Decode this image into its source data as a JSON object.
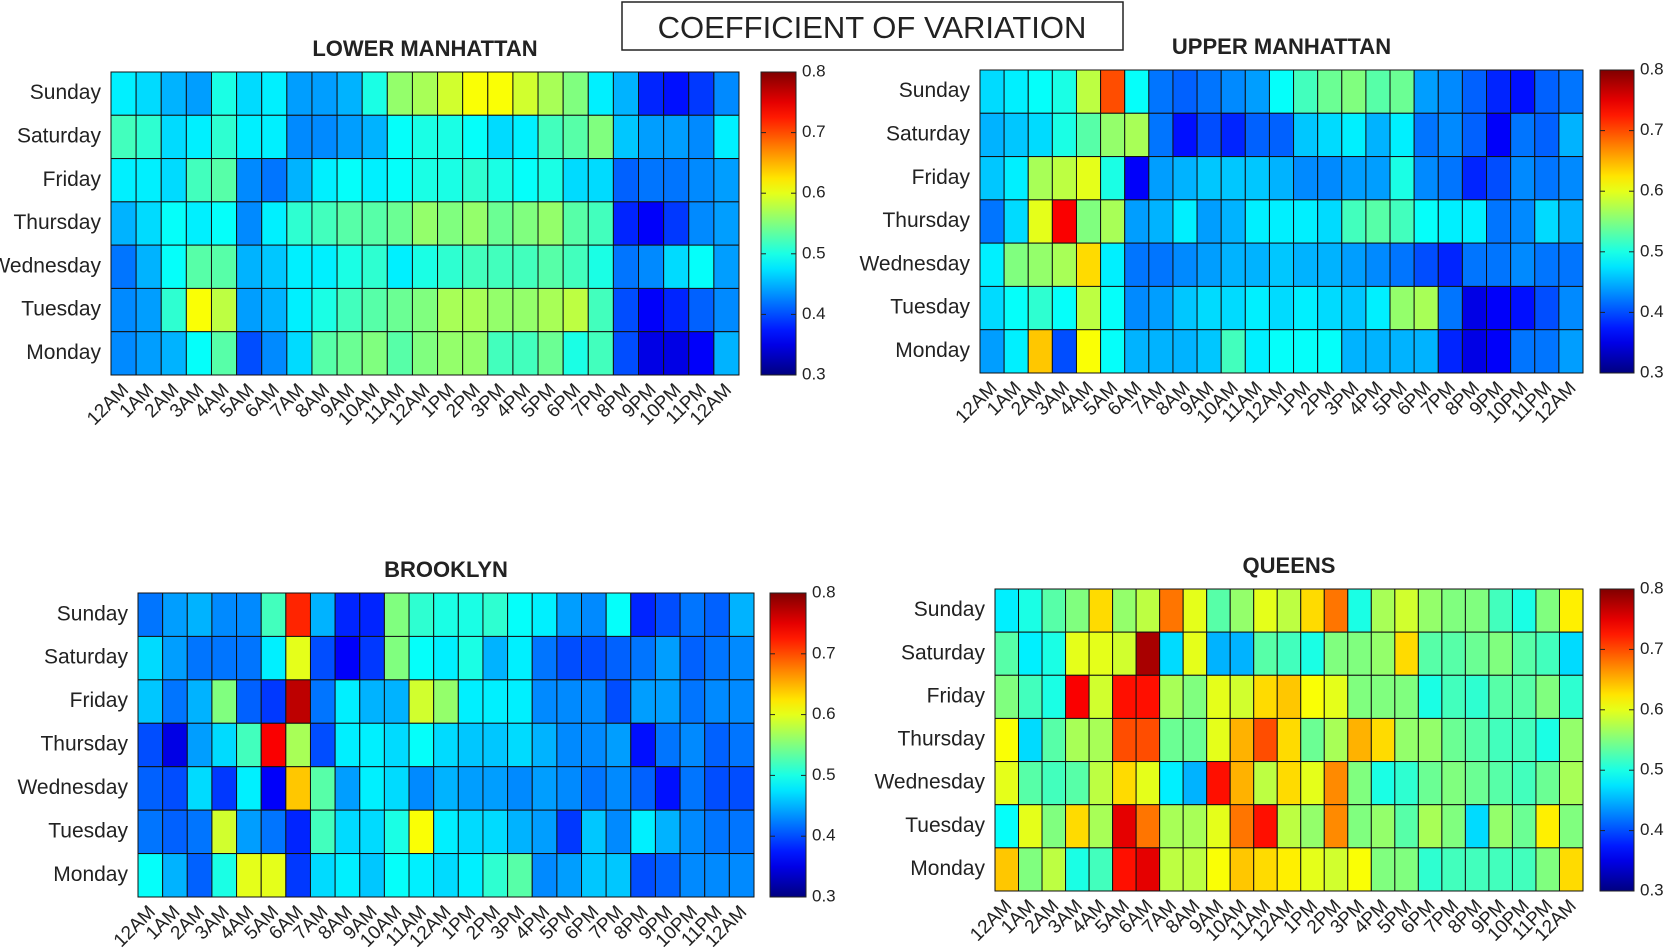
{
  "title": "COEFFICIENT OF VARIATION",
  "chart_data": [
    {
      "type": "heatmap",
      "title": "LOWER MANHATTAN",
      "colormap": "jet",
      "zlim": [
        0.3,
        0.8
      ],
      "zticks": [
        0.3,
        0.4,
        0.5,
        0.6,
        0.7,
        0.8
      ],
      "x": [
        "12AM",
        "1AM",
        "2AM",
        "3AM",
        "4AM",
        "5AM",
        "6AM",
        "7AM",
        "8AM",
        "9AM",
        "10AM",
        "11AM",
        "12AM",
        "1PM",
        "2PM",
        "3PM",
        "4PM",
        "5PM",
        "6PM",
        "7PM",
        "8PM",
        "9PM",
        "10PM",
        "11PM",
        "12AM"
      ],
      "y": [
        "Sunday",
        "Saturday",
        "Friday",
        "Thursday",
        "Wednesday",
        "Tuesday",
        "Monday"
      ],
      "values": [
        [
          0.48,
          0.47,
          0.45,
          0.44,
          0.5,
          0.47,
          0.48,
          0.44,
          0.44,
          0.45,
          0.5,
          0.56,
          0.57,
          0.59,
          0.61,
          0.61,
          0.59,
          0.57,
          0.55,
          0.48,
          0.45,
          0.38,
          0.37,
          0.39,
          0.43
        ],
        [
          0.52,
          0.51,
          0.47,
          0.48,
          0.51,
          0.48,
          0.48,
          0.43,
          0.43,
          0.44,
          0.45,
          0.49,
          0.5,
          0.5,
          0.49,
          0.47,
          0.48,
          0.52,
          0.53,
          0.55,
          0.46,
          0.44,
          0.44,
          0.43,
          0.48
        ],
        [
          0.48,
          0.48,
          0.47,
          0.52,
          0.53,
          0.43,
          0.42,
          0.45,
          0.48,
          0.49,
          0.48,
          0.49,
          0.5,
          0.5,
          0.51,
          0.5,
          0.49,
          0.5,
          0.47,
          0.47,
          0.41,
          0.42,
          0.42,
          0.43,
          0.44
        ],
        [
          0.45,
          0.47,
          0.49,
          0.48,
          0.49,
          0.43,
          0.48,
          0.51,
          0.52,
          0.53,
          0.53,
          0.54,
          0.56,
          0.55,
          0.56,
          0.54,
          0.55,
          0.56,
          0.53,
          0.52,
          0.38,
          0.36,
          0.39,
          0.43,
          0.44
        ],
        [
          0.42,
          0.45,
          0.49,
          0.53,
          0.53,
          0.45,
          0.46,
          0.48,
          0.48,
          0.5,
          0.51,
          0.48,
          0.5,
          0.51,
          0.52,
          0.52,
          0.52,
          0.53,
          0.52,
          0.5,
          0.42,
          0.43,
          0.47,
          0.49,
          0.44
        ],
        [
          0.43,
          0.44,
          0.51,
          0.61,
          0.58,
          0.44,
          0.45,
          0.48,
          0.5,
          0.52,
          0.53,
          0.54,
          0.55,
          0.57,
          0.57,
          0.56,
          0.56,
          0.57,
          0.58,
          0.52,
          0.4,
          0.36,
          0.38,
          0.41,
          0.43
        ],
        [
          0.43,
          0.44,
          0.45,
          0.49,
          0.53,
          0.4,
          0.43,
          0.47,
          0.53,
          0.54,
          0.55,
          0.53,
          0.55,
          0.56,
          0.56,
          0.52,
          0.52,
          0.54,
          0.5,
          0.52,
          0.4,
          0.35,
          0.35,
          0.36,
          0.45
        ]
      ]
    },
    {
      "type": "heatmap",
      "title": "UPPER MANHATTAN",
      "colormap": "jet",
      "zlim": [
        0.3,
        0.8
      ],
      "zticks": [
        0.3,
        0.4,
        0.5,
        0.6,
        0.7,
        0.8
      ],
      "x": [
        "12AM",
        "1AM",
        "2AM",
        "3AM",
        "4AM",
        "5AM",
        "6AM",
        "7AM",
        "8AM",
        "9AM",
        "10AM",
        "11AM",
        "12AM",
        "1PM",
        "2PM",
        "3PM",
        "4PM",
        "5PM",
        "6PM",
        "7PM",
        "8PM",
        "9PM",
        "10PM",
        "11PM",
        "12AM"
      ],
      "y": [
        "Sunday",
        "Saturday",
        "Friday",
        "Thursday",
        "Wednesday",
        "Tuesday",
        "Monday"
      ],
      "values": [
        [
          0.47,
          0.48,
          0.49,
          0.5,
          0.58,
          0.7,
          0.49,
          0.42,
          0.41,
          0.42,
          0.43,
          0.44,
          0.49,
          0.52,
          0.54,
          0.55,
          0.53,
          0.54,
          0.44,
          0.43,
          0.41,
          0.38,
          0.37,
          0.41,
          0.42
        ],
        [
          0.45,
          0.46,
          0.47,
          0.5,
          0.53,
          0.56,
          0.57,
          0.42,
          0.37,
          0.4,
          0.38,
          0.41,
          0.41,
          0.46,
          0.47,
          0.48,
          0.45,
          0.48,
          0.42,
          0.43,
          0.41,
          0.36,
          0.42,
          0.41,
          0.45
        ],
        [
          0.46,
          0.48,
          0.57,
          0.58,
          0.6,
          0.5,
          0.36,
          0.44,
          0.45,
          0.46,
          0.46,
          0.46,
          0.45,
          0.43,
          0.43,
          0.44,
          0.44,
          0.5,
          0.43,
          0.42,
          0.38,
          0.4,
          0.43,
          0.42,
          0.43
        ],
        [
          0.42,
          0.47,
          0.6,
          0.74,
          0.55,
          0.57,
          0.44,
          0.45,
          0.48,
          0.44,
          0.45,
          0.48,
          0.48,
          0.48,
          0.47,
          0.52,
          0.53,
          0.52,
          0.49,
          0.48,
          0.48,
          0.42,
          0.43,
          0.47,
          0.45
        ],
        [
          0.48,
          0.55,
          0.56,
          0.57,
          0.63,
          0.48,
          0.42,
          0.42,
          0.43,
          0.44,
          0.45,
          0.45,
          0.46,
          0.45,
          0.45,
          0.44,
          0.43,
          0.42,
          0.4,
          0.38,
          0.42,
          0.42,
          0.43,
          0.42,
          0.42
        ],
        [
          0.47,
          0.49,
          0.51,
          0.49,
          0.58,
          0.49,
          0.43,
          0.44,
          0.46,
          0.47,
          0.47,
          0.48,
          0.47,
          0.48,
          0.47,
          0.46,
          0.48,
          0.56,
          0.57,
          0.42,
          0.35,
          0.36,
          0.37,
          0.4,
          0.43
        ],
        [
          0.44,
          0.48,
          0.64,
          0.4,
          0.61,
          0.49,
          0.45,
          0.45,
          0.45,
          0.46,
          0.52,
          0.48,
          0.49,
          0.49,
          0.49,
          0.45,
          0.45,
          0.45,
          0.45,
          0.38,
          0.35,
          0.36,
          0.42,
          0.42,
          0.44
        ]
      ]
    },
    {
      "type": "heatmap",
      "title": "BROOKLYN",
      "colormap": "jet",
      "zlim": [
        0.3,
        0.8
      ],
      "zticks": [
        0.3,
        0.4,
        0.5,
        0.6,
        0.7,
        0.8
      ],
      "x": [
        "12AM",
        "1AM",
        "2AM",
        "3AM",
        "4AM",
        "5AM",
        "6AM",
        "7AM",
        "8AM",
        "9AM",
        "10AM",
        "11AM",
        "12AM",
        "1PM",
        "2PM",
        "3PM",
        "4PM",
        "5PM",
        "6PM",
        "7PM",
        "8PM",
        "9PM",
        "10PM",
        "11PM",
        "12AM"
      ],
      "y": [
        "Sunday",
        "Saturday",
        "Friday",
        "Thursday",
        "Wednesday",
        "Tuesday",
        "Monday"
      ],
      "values": [
        [
          0.42,
          0.44,
          0.45,
          0.43,
          0.43,
          0.52,
          0.72,
          0.45,
          0.38,
          0.38,
          0.55,
          0.51,
          0.5,
          0.5,
          0.51,
          0.49,
          0.48,
          0.44,
          0.43,
          0.49,
          0.38,
          0.4,
          0.42,
          0.41,
          0.45
        ],
        [
          0.47,
          0.44,
          0.42,
          0.42,
          0.42,
          0.48,
          0.6,
          0.4,
          0.36,
          0.39,
          0.55,
          0.49,
          0.48,
          0.5,
          0.45,
          0.48,
          0.42,
          0.4,
          0.4,
          0.41,
          0.42,
          0.44,
          0.41,
          0.42,
          0.43
        ],
        [
          0.46,
          0.42,
          0.45,
          0.55,
          0.41,
          0.39,
          0.77,
          0.42,
          0.48,
          0.45,
          0.45,
          0.59,
          0.56,
          0.48,
          0.48,
          0.48,
          0.43,
          0.43,
          0.43,
          0.4,
          0.44,
          0.44,
          0.42,
          0.43,
          0.43
        ],
        [
          0.4,
          0.35,
          0.44,
          0.47,
          0.52,
          0.74,
          0.57,
          0.4,
          0.48,
          0.48,
          0.47,
          0.49,
          0.47,
          0.46,
          0.46,
          0.47,
          0.45,
          0.43,
          0.43,
          0.44,
          0.37,
          0.42,
          0.43,
          0.41,
          0.42
        ],
        [
          0.41,
          0.4,
          0.47,
          0.39,
          0.48,
          0.36,
          0.64,
          0.53,
          0.44,
          0.48,
          0.47,
          0.43,
          0.45,
          0.44,
          0.44,
          0.43,
          0.44,
          0.43,
          0.42,
          0.43,
          0.41,
          0.37,
          0.42,
          0.4,
          0.4
        ],
        [
          0.42,
          0.41,
          0.42,
          0.59,
          0.44,
          0.42,
          0.38,
          0.52,
          0.47,
          0.47,
          0.5,
          0.61,
          0.48,
          0.47,
          0.47,
          0.45,
          0.44,
          0.39,
          0.46,
          0.43,
          0.48,
          0.45,
          0.43,
          0.42,
          0.42
        ],
        [
          0.49,
          0.45,
          0.41,
          0.5,
          0.6,
          0.6,
          0.39,
          0.47,
          0.48,
          0.46,
          0.49,
          0.48,
          0.47,
          0.48,
          0.51,
          0.53,
          0.43,
          0.44,
          0.46,
          0.46,
          0.4,
          0.41,
          0.43,
          0.43,
          0.43
        ]
      ]
    },
    {
      "type": "heatmap",
      "title": "QUEENS",
      "colormap": "jet",
      "zlim": [
        0.3,
        0.8
      ],
      "zticks": [
        0.3,
        0.4,
        0.5,
        0.6,
        0.7,
        0.8
      ],
      "x": [
        "12AM",
        "1AM",
        "2AM",
        "3AM",
        "4AM",
        "5AM",
        "6AM",
        "7AM",
        "8AM",
        "9AM",
        "10AM",
        "11AM",
        "12AM",
        "1PM",
        "2PM",
        "3PM",
        "4PM",
        "5PM",
        "6PM",
        "7PM",
        "8PM",
        "9PM",
        "10PM",
        "11PM",
        "12AM"
      ],
      "y": [
        "Sunday",
        "Saturday",
        "Friday",
        "Thursday",
        "Wednesday",
        "Tuesday",
        "Monday"
      ],
      "values": [
        [
          0.48,
          0.5,
          0.53,
          0.55,
          0.63,
          0.56,
          0.58,
          0.68,
          0.6,
          0.53,
          0.56,
          0.6,
          0.58,
          0.63,
          0.68,
          0.5,
          0.57,
          0.59,
          0.56,
          0.55,
          0.55,
          0.52,
          0.5,
          0.55,
          0.62
        ],
        [
          0.53,
          0.48,
          0.5,
          0.6,
          0.6,
          0.59,
          0.78,
          0.47,
          0.6,
          0.45,
          0.45,
          0.53,
          0.52,
          0.5,
          0.55,
          0.55,
          0.56,
          0.63,
          0.53,
          0.53,
          0.54,
          0.55,
          0.53,
          0.52,
          0.47
        ],
        [
          0.55,
          0.52,
          0.5,
          0.74,
          0.59,
          0.73,
          0.73,
          0.57,
          0.55,
          0.6,
          0.59,
          0.63,
          0.64,
          0.61,
          0.6,
          0.55,
          0.55,
          0.55,
          0.5,
          0.52,
          0.51,
          0.53,
          0.53,
          0.55,
          0.51
        ],
        [
          0.61,
          0.47,
          0.53,
          0.57,
          0.57,
          0.7,
          0.7,
          0.54,
          0.54,
          0.6,
          0.65,
          0.7,
          0.63,
          0.54,
          0.57,
          0.65,
          0.63,
          0.56,
          0.56,
          0.54,
          0.53,
          0.52,
          0.52,
          0.5,
          0.56
        ],
        [
          0.6,
          0.53,
          0.52,
          0.53,
          0.58,
          0.63,
          0.6,
          0.48,
          0.45,
          0.73,
          0.65,
          0.58,
          0.63,
          0.6,
          0.67,
          0.55,
          0.5,
          0.51,
          0.54,
          0.55,
          0.54,
          0.53,
          0.52,
          0.54,
          0.57
        ],
        [
          0.49,
          0.6,
          0.55,
          0.63,
          0.57,
          0.75,
          0.68,
          0.57,
          0.57,
          0.6,
          0.68,
          0.73,
          0.58,
          0.56,
          0.67,
          0.55,
          0.56,
          0.53,
          0.57,
          0.55,
          0.47,
          0.56,
          0.54,
          0.62,
          0.55
        ],
        [
          0.64,
          0.55,
          0.58,
          0.5,
          0.52,
          0.73,
          0.75,
          0.58,
          0.58,
          0.61,
          0.64,
          0.63,
          0.62,
          0.6,
          0.59,
          0.61,
          0.55,
          0.55,
          0.51,
          0.52,
          0.52,
          0.52,
          0.52,
          0.55,
          0.63
        ]
      ]
    }
  ]
}
